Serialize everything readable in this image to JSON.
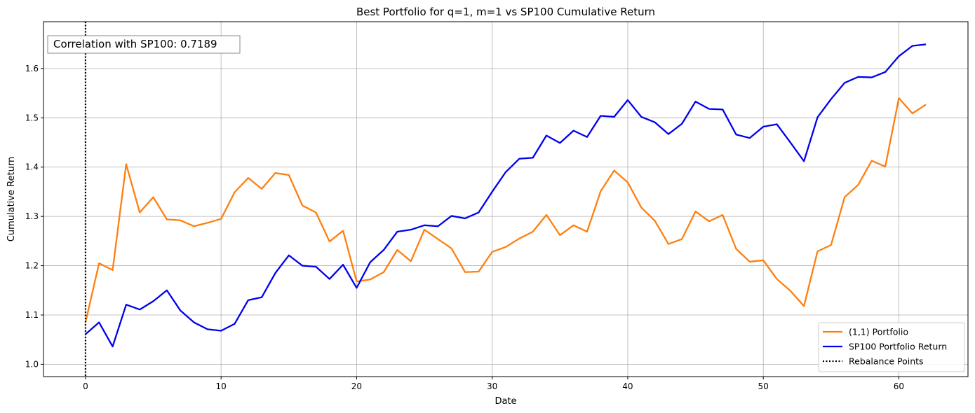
{
  "chart_data": {
    "type": "line",
    "title": "Best Portfolio for q=1, m=1 vs SP100 Cumulative Return",
    "xlabel": "Date",
    "ylabel": "Cumulative Return",
    "xlim": [
      -3.1,
      65.1
    ],
    "ylim": [
      0.975,
      1.695
    ],
    "x_ticks": [
      0,
      10,
      20,
      30,
      40,
      50,
      60
    ],
    "y_ticks": [
      1.0,
      1.1,
      1.2,
      1.3,
      1.4,
      1.5,
      1.6
    ],
    "y_tick_labels": [
      "1.0",
      "1.1",
      "1.2",
      "1.3",
      "1.4",
      "1.5",
      "1.6"
    ],
    "grid": true,
    "legend_position": "bottom-right",
    "annotation": "Correlation with SP100: 0.7189",
    "rebalance_points": {
      "name": "Rebalance Points",
      "x": [
        0
      ],
      "color": "#000000"
    },
    "series": [
      {
        "name": "(1,1) Portfolio",
        "color": "#ff7f0e",
        "values": [
          1.085,
          1.205,
          1.191,
          1.406,
          1.308,
          1.339,
          1.294,
          1.292,
          1.28,
          1.287,
          1.295,
          1.349,
          1.378,
          1.356,
          1.388,
          1.384,
          1.322,
          1.308,
          1.249,
          1.271,
          1.168,
          1.172,
          1.187,
          1.232,
          1.209,
          1.273,
          1.254,
          1.235,
          1.187,
          1.188,
          1.228,
          1.238,
          1.255,
          1.269,
          1.303,
          1.262,
          1.282,
          1.269,
          1.351,
          1.393,
          1.369,
          1.318,
          1.291,
          1.244,
          1.254,
          1.31,
          1.29,
          1.303,
          1.234,
          1.208,
          1.211,
          1.173,
          1.149,
          1.118,
          1.229,
          1.242,
          1.339,
          1.364,
          1.413,
          1.401,
          1.54,
          1.509,
          1.527
        ]
      },
      {
        "name": "SP100 Portfolio Return",
        "color": "#0000ee",
        "values": [
          1.061,
          1.085,
          1.036,
          1.121,
          1.111,
          1.128,
          1.15,
          1.109,
          1.085,
          1.071,
          1.068,
          1.082,
          1.13,
          1.136,
          1.185,
          1.221,
          1.2,
          1.198,
          1.173,
          1.202,
          1.155,
          1.207,
          1.232,
          1.269,
          1.273,
          1.282,
          1.28,
          1.301,
          1.296,
          1.308,
          1.35,
          1.39,
          1.417,
          1.419,
          1.464,
          1.449,
          1.474,
          1.461,
          1.504,
          1.502,
          1.536,
          1.502,
          1.491,
          1.467,
          1.488,
          1.533,
          1.518,
          1.517,
          1.466,
          1.459,
          1.482,
          1.487,
          1.45,
          1.412,
          1.501,
          1.538,
          1.571,
          1.583,
          1.582,
          1.593,
          1.625,
          1.646,
          1.649
        ]
      }
    ]
  }
}
